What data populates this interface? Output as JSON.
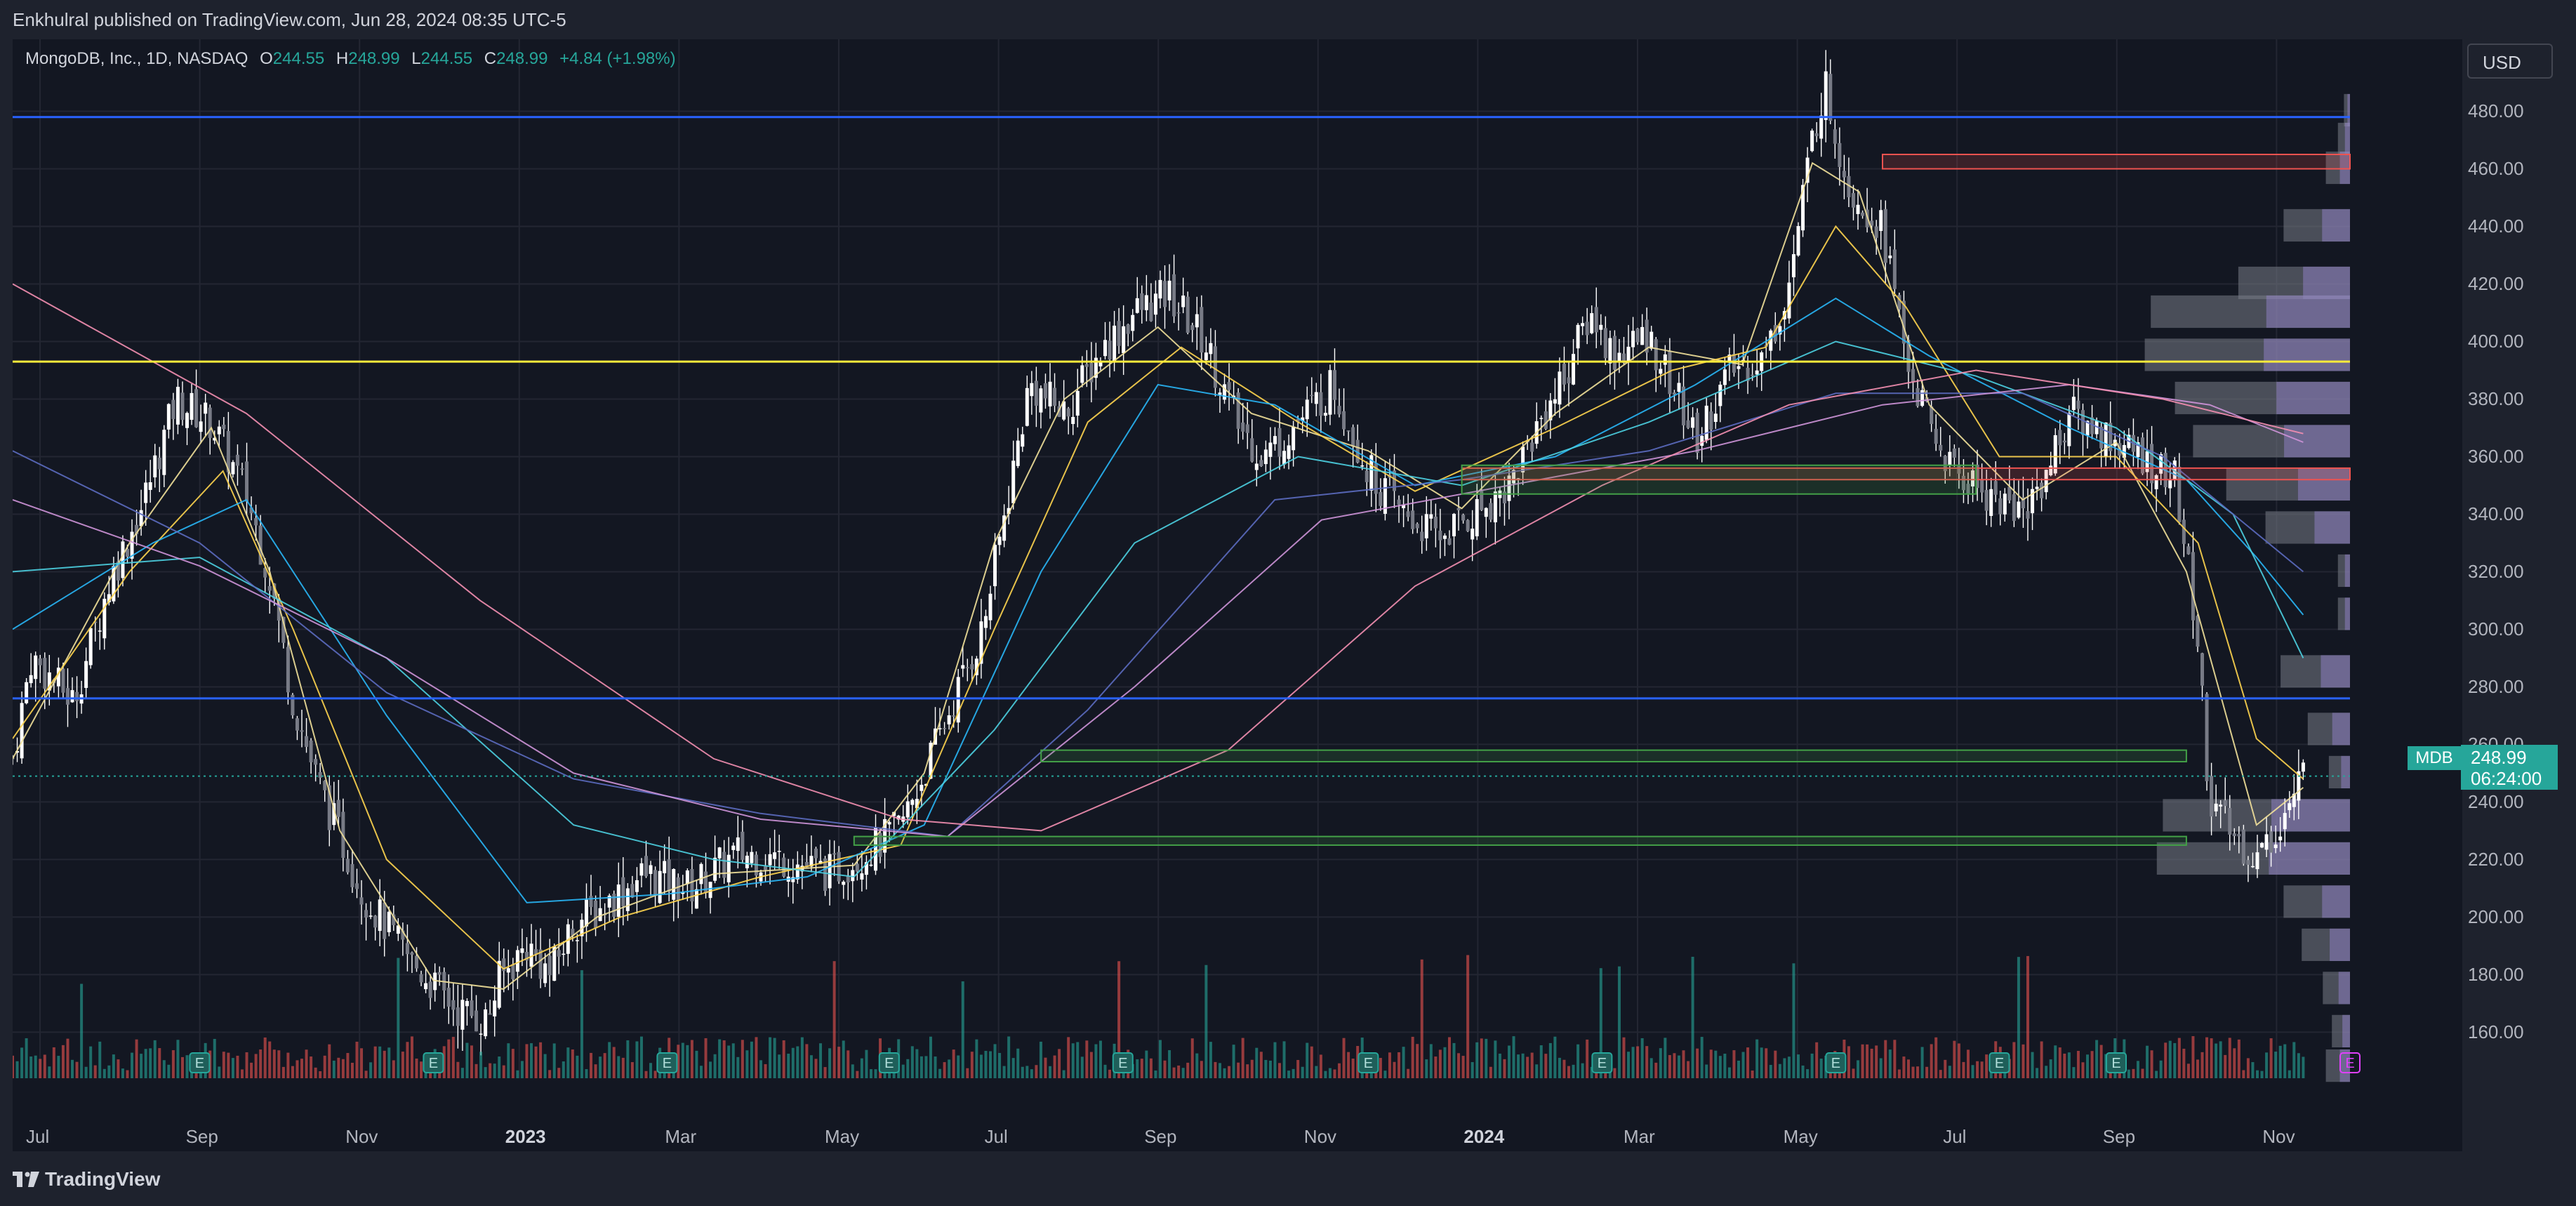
{
  "header": {
    "publisher_line": "Enkhulral published on TradingView.com, Jun 28, 2024 08:35 UTC-5"
  },
  "legend": {
    "symbol": "MongoDB, Inc., 1D, NASDAQ",
    "o_label": "O",
    "o_value": "244.55",
    "h_label": "H",
    "h_value": "248.99",
    "l_label": "L",
    "l_value": "244.55",
    "c_label": "C",
    "c_value": "248.99",
    "change": "+4.84 (+1.98%)"
  },
  "currency_button": "USD",
  "last_price": {
    "symbol": "MDB",
    "price": "248.99",
    "countdown": "06:24:00"
  },
  "footer": {
    "brand": "TradingView"
  },
  "earnings_marker": "E",
  "colors": {
    "background": "#131722",
    "up": "#26a69a",
    "down": "#ef5350",
    "blue_line": "#2962ff",
    "yellow_line": "#ffeb3b"
  },
  "chart_data": {
    "type": "candlestick",
    "price_axis": [
      "480.00",
      "460.00",
      "440.00",
      "420.00",
      "400.00",
      "380.00",
      "360.00",
      "340.00",
      "320.00",
      "300.00",
      "280.00",
      "260.00",
      "240.00",
      "220.00",
      "200.00",
      "180.00",
      "160.00"
    ],
    "time_axis": [
      "Jul",
      "Sep",
      "Nov",
      "2023",
      "Mar",
      "May",
      "Jul",
      "Sep",
      "Nov",
      "2024",
      "Mar",
      "May",
      "Jul",
      "Sep",
      "Nov"
    ],
    "ylim": [
      144,
      505
    ],
    "horizontal_levels": [
      {
        "price": 478,
        "color": "#2962ff"
      },
      {
        "price": 393,
        "color": "#ffeb3b"
      },
      {
        "price": 276,
        "color": "#2962ff"
      }
    ],
    "close_path": [
      [
        0,
        255
      ],
      [
        0.8,
        290
      ],
      [
        2.6,
        275
      ],
      [
        4.2,
        318
      ],
      [
        5.5,
        342
      ],
      [
        7,
        380
      ],
      [
        8.5,
        372
      ],
      [
        10,
        347
      ],
      [
        11,
        318
      ],
      [
        12,
        275
      ],
      [
        13,
        248
      ],
      [
        15,
        208
      ],
      [
        17,
        185
      ],
      [
        19,
        168
      ],
      [
        20.3,
        164
      ],
      [
        20.8,
        178
      ],
      [
        22,
        190
      ],
      [
        23,
        180
      ],
      [
        24,
        198
      ],
      [
        25,
        202
      ],
      [
        27,
        215
      ],
      [
        29,
        210
      ],
      [
        31,
        222
      ],
      [
        33,
        220
      ],
      [
        35,
        215
      ],
      [
        37,
        225
      ],
      [
        38,
        232
      ],
      [
        39,
        250
      ],
      [
        40,
        270
      ],
      [
        41.5,
        300
      ],
      [
        43.5,
        385
      ],
      [
        45,
        375
      ],
      [
        46.5,
        396
      ],
      [
        48,
        410
      ],
      [
        49.5,
        416
      ],
      [
        51,
        400
      ],
      [
        52.5,
        370
      ],
      [
        53.5,
        360
      ],
      [
        55,
        372
      ],
      [
        56.5,
        385
      ],
      [
        58,
        355
      ],
      [
        59.5,
        340
      ],
      [
        61,
        332
      ],
      [
        62.5,
        340
      ],
      [
        64,
        350
      ],
      [
        65.5,
        375
      ],
      [
        66.5,
        390
      ],
      [
        67.5,
        410
      ],
      [
        68.5,
        395
      ],
      [
        70,
        402
      ],
      [
        71,
        385
      ],
      [
        72,
        365
      ],
      [
        73.5,
        390
      ],
      [
        75,
        395
      ],
      [
        76,
        420
      ],
      [
        77,
        470
      ],
      [
        77.5,
        490
      ],
      [
        78.5,
        455
      ],
      [
        80,
        440
      ],
      [
        81,
        395
      ],
      [
        82,
        370
      ],
      [
        83,
        355
      ],
      [
        84,
        350
      ],
      [
        86,
        340
      ],
      [
        87,
        355
      ],
      [
        88,
        375
      ],
      [
        89.5,
        368
      ],
      [
        91,
        360
      ],
      [
        92.5,
        352
      ],
      [
        93,
        325
      ],
      [
        93.5,
        295
      ],
      [
        94,
        240
      ],
      [
        95,
        228
      ],
      [
        96,
        220
      ],
      [
        97,
        232
      ],
      [
        98,
        248.99
      ]
    ],
    "moving_averages": [
      {
        "name": "EMA 10",
        "color": "#f2e19a",
        "path": [
          [
            0,
            255
          ],
          [
            5,
            330
          ],
          [
            8.5,
            370
          ],
          [
            11,
            320
          ],
          [
            14,
            230
          ],
          [
            18,
            178
          ],
          [
            21,
            175
          ],
          [
            25,
            200
          ],
          [
            30,
            215
          ],
          [
            36,
            218
          ],
          [
            39,
            250
          ],
          [
            42,
            330
          ],
          [
            45,
            380
          ],
          [
            49,
            405
          ],
          [
            53,
            375
          ],
          [
            58,
            362
          ],
          [
            62,
            342
          ],
          [
            66,
            375
          ],
          [
            70,
            398
          ],
          [
            74,
            392
          ],
          [
            77,
            462
          ],
          [
            79,
            452
          ],
          [
            82,
            378
          ],
          [
            86,
            345
          ],
          [
            90,
            365
          ],
          [
            93,
            320
          ],
          [
            96,
            232
          ],
          [
            98,
            245
          ]
        ]
      },
      {
        "name": "EMA 20",
        "color": "#ffd54f",
        "path": [
          [
            0,
            262
          ],
          [
            5,
            320
          ],
          [
            9,
            355
          ],
          [
            12,
            300
          ],
          [
            16,
            220
          ],
          [
            21,
            182
          ],
          [
            26,
            200
          ],
          [
            32,
            214
          ],
          [
            38,
            225
          ],
          [
            42,
            300
          ],
          [
            46,
            372
          ],
          [
            50,
            398
          ],
          [
            55,
            372
          ],
          [
            60,
            348
          ],
          [
            66,
            370
          ],
          [
            71,
            390
          ],
          [
            75,
            398
          ],
          [
            78,
            440
          ],
          [
            81,
            412
          ],
          [
            85,
            360
          ],
          [
            90,
            360
          ],
          [
            93.5,
            330
          ],
          [
            96,
            262
          ],
          [
            98,
            248
          ]
        ]
      },
      {
        "name": "EMA 50",
        "color": "#29b6f6",
        "path": [
          [
            0,
            300
          ],
          [
            6,
            330
          ],
          [
            10,
            345
          ],
          [
            16,
            270
          ],
          [
            22,
            205
          ],
          [
            28,
            208
          ],
          [
            34,
            214
          ],
          [
            39,
            232
          ],
          [
            44,
            320
          ],
          [
            49,
            385
          ],
          [
            54,
            378
          ],
          [
            60,
            350
          ],
          [
            66,
            360
          ],
          [
            72,
            385
          ],
          [
            78,
            415
          ],
          [
            82,
            395
          ],
          [
            88,
            370
          ],
          [
            93,
            352
          ],
          [
            96,
            325
          ],
          [
            98,
            305
          ]
        ]
      },
      {
        "name": "EMA 100",
        "color": "#4dd0e1",
        "path": [
          [
            0,
            320
          ],
          [
            8,
            325
          ],
          [
            16,
            290
          ],
          [
            24,
            232
          ],
          [
            30,
            220
          ],
          [
            36,
            214
          ],
          [
            42,
            265
          ],
          [
            48,
            330
          ],
          [
            55,
            360
          ],
          [
            62,
            350
          ],
          [
            70,
            372
          ],
          [
            78,
            400
          ],
          [
            84,
            388
          ],
          [
            90,
            370
          ],
          [
            95,
            340
          ],
          [
            98,
            290
          ]
        ]
      },
      {
        "name": "SMA 150",
        "color": "#5c6bc0",
        "path": [
          [
            0,
            362
          ],
          [
            8,
            330
          ],
          [
            16,
            278
          ],
          [
            24,
            248
          ],
          [
            32,
            236
          ],
          [
            40,
            228
          ],
          [
            46,
            272
          ],
          [
            54,
            345
          ],
          [
            62,
            352
          ],
          [
            70,
            362
          ],
          [
            78,
            382
          ],
          [
            86,
            382
          ],
          [
            92,
            360
          ],
          [
            98,
            320
          ]
        ]
      },
      {
        "name": "SMA 200",
        "color": "#ce93d8",
        "path": [
          [
            0,
            345
          ],
          [
            8,
            322
          ],
          [
            16,
            290
          ],
          [
            24,
            250
          ],
          [
            32,
            234
          ],
          [
            40,
            228
          ],
          [
            48,
            280
          ],
          [
            56,
            338
          ],
          [
            64,
            350
          ],
          [
            72,
            362
          ],
          [
            80,
            378
          ],
          [
            88,
            385
          ],
          [
            94,
            378
          ],
          [
            98,
            365
          ]
        ]
      },
      {
        "name": "SMA 300",
        "color": "#f48fb1",
        "path": [
          [
            0,
            420
          ],
          [
            10,
            375
          ],
          [
            20,
            310
          ],
          [
            30,
            255
          ],
          [
            38,
            234
          ],
          [
            44,
            230
          ],
          [
            52,
            258
          ],
          [
            60,
            315
          ],
          [
            68,
            350
          ],
          [
            76,
            378
          ],
          [
            84,
            390
          ],
          [
            92,
            380
          ],
          [
            98,
            368
          ]
        ]
      }
    ],
    "zones": [
      {
        "type": "supply",
        "color": "#ef5350",
        "from": 80,
        "to": 100,
        "low": 460,
        "high": 465
      },
      {
        "type": "supply",
        "color": "#ef5350",
        "from": 62,
        "to": 100,
        "low": 352,
        "high": 356
      },
      {
        "type": "demand",
        "color": "#43a047",
        "from": 44,
        "to": 93,
        "low": 254,
        "high": 258
      },
      {
        "type": "demand",
        "color": "#43a047",
        "from": 62,
        "to": 84,
        "low": 347,
        "high": 357
      },
      {
        "type": "demand",
        "color": "#43a047",
        "from": 36,
        "to": 93,
        "low": 225,
        "high": 228
      }
    ],
    "volume_profile": [
      {
        "price": 480,
        "size": 0.02
      },
      {
        "price": 470,
        "size": 0.04
      },
      {
        "price": 460,
        "size": 0.08
      },
      {
        "price": 440,
        "size": 0.22
      },
      {
        "price": 420,
        "size": 0.37
      },
      {
        "price": 410,
        "size": 0.66
      },
      {
        "price": 395,
        "size": 0.68
      },
      {
        "price": 380,
        "size": 0.58
      },
      {
        "price": 365,
        "size": 0.52
      },
      {
        "price": 350,
        "size": 0.41
      },
      {
        "price": 335,
        "size": 0.28
      },
      {
        "price": 320,
        "size": 0.04
      },
      {
        "price": 305,
        "size": 0.04
      },
      {
        "price": 285,
        "size": 0.23
      },
      {
        "price": 265,
        "size": 0.14
      },
      {
        "price": 250,
        "size": 0.07
      },
      {
        "price": 235,
        "size": 0.62
      },
      {
        "price": 220,
        "size": 0.64
      },
      {
        "price": 205,
        "size": 0.22
      },
      {
        "price": 190,
        "size": 0.16
      },
      {
        "price": 175,
        "size": 0.09
      },
      {
        "price": 160,
        "size": 0.06
      },
      {
        "price": 148,
        "size": 0.08
      }
    ],
    "earnings_x": [
      8,
      18,
      28,
      37.5,
      47.5,
      58,
      68,
      78,
      85,
      90,
      100
    ]
  }
}
